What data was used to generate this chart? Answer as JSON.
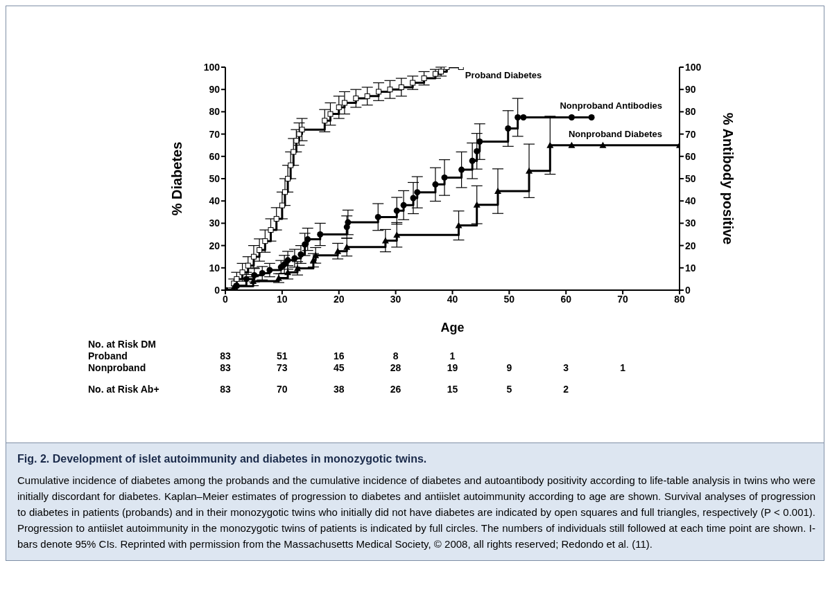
{
  "chart_data": {
    "type": "step",
    "title": "Fig. 2. Development of islet autoimmunity and diabetes in monozygotic twins.",
    "xlabel": "Age",
    "ylabel": "% Diabetes",
    "y2label": "% Antibody positive",
    "xlim": [
      0,
      80
    ],
    "xticks": [
      0,
      10,
      20,
      30,
      40,
      50,
      60,
      70,
      80
    ],
    "ylim": [
      0,
      100
    ],
    "yticks": [
      0,
      10,
      20,
      30,
      40,
      50,
      60,
      70,
      80,
      90,
      100
    ],
    "y2lim": [
      0,
      100
    ],
    "y2ticks": [
      0,
      10,
      20,
      30,
      40,
      50,
      60,
      70,
      80,
      90,
      100
    ],
    "grid": false,
    "legend": false,
    "line_style": "solid",
    "series": [
      {
        "name": "Proband Diabetes",
        "color": "#000000",
        "marker": "square",
        "x": [
          0,
          1.5,
          2,
          3,
          4,
          5,
          6,
          7,
          8,
          9,
          10,
          10.5,
          11,
          11.5,
          12,
          12.5,
          13,
          13.5,
          17.5,
          18.5,
          20,
          21,
          23,
          25,
          27,
          29,
          31,
          33,
          35,
          37,
          38,
          39,
          41.5
        ],
        "values": [
          0,
          3,
          5,
          8,
          11,
          15,
          18,
          22,
          27,
          32,
          38,
          44,
          50,
          56,
          62,
          67,
          70,
          72,
          76,
          79,
          82,
          84,
          86,
          87,
          89,
          90,
          91,
          93,
          95,
          97,
          98,
          100,
          100
        ],
        "errors": [
          null,
          2,
          3,
          4,
          4,
          5,
          5,
          5,
          5,
          5,
          6,
          6,
          6,
          6,
          6,
          5,
          5,
          5,
          5,
          5,
          5,
          5,
          4,
          4,
          4,
          4,
          4,
          3,
          3,
          2,
          2,
          null,
          null
        ]
      },
      {
        "name": "Nonproband Antibodies",
        "color": "#000000",
        "marker": "circle",
        "x": [
          0,
          2,
          3.7,
          5.1,
          6.5,
          7.8,
          9.8,
          10.4,
          11,
          12.2,
          13.3,
          14,
          14.5,
          16.7,
          21.4,
          21.6,
          26.9,
          30.2,
          31.4,
          33.1,
          33.8,
          37,
          38.6,
          41.6,
          43.5,
          44.3,
          44.8,
          49.8,
          51.5,
          52.5,
          61,
          64.5
        ],
        "values": [
          0,
          2,
          5,
          6.7,
          7.6,
          9,
          10.3,
          11.6,
          13.4,
          14.3,
          16,
          20.5,
          22.8,
          25,
          28.3,
          30.4,
          32.8,
          35.6,
          38.1,
          41.3,
          43.9,
          47.4,
          50.5,
          54,
          58,
          62.3,
          66.6,
          72.5,
          77.5,
          77.5,
          77.5,
          77.5
        ],
        "errors": [
          null,
          null,
          3,
          3,
          3,
          3,
          3,
          4,
          4,
          4,
          4,
          5,
          5,
          5,
          5,
          5.5,
          6,
          6,
          6.5,
          7,
          7,
          7.5,
          8,
          8,
          8,
          8,
          8,
          8,
          8.5,
          null,
          null,
          null
        ]
      },
      {
        "name": "Nonproband Diabetes",
        "color": "#000000",
        "marker": "triangle",
        "x": [
          0,
          1.6,
          4.9,
          9.4,
          11,
          12.7,
          15.5,
          15.9,
          19.8,
          21.4,
          28.2,
          30.2,
          41.1,
          44.3,
          48,
          53.5,
          57.2,
          61,
          66.5,
          80
        ],
        "values": [
          0,
          1.8,
          4,
          5.4,
          8,
          9.8,
          13.4,
          15.6,
          17.5,
          19.3,
          22.2,
          24.8,
          29,
          38.3,
          44.4,
          53.5,
          65,
          65,
          65,
          65
        ],
        "errors": [
          null,
          null,
          2,
          2,
          3,
          3,
          3,
          3.5,
          3.5,
          4,
          5,
          5.5,
          6.5,
          8.5,
          10,
          12,
          13,
          null,
          null,
          null
        ]
      }
    ],
    "annotations": [
      "No. at Risk DM",
      "Proband",
      "83",
      "51",
      "16",
      "8",
      "1",
      "Nonproband",
      "83",
      "73",
      "45",
      "28",
      "19",
      "9",
      "3",
      "1",
      "No. at Risk Ab+",
      "83",
      "70",
      "38",
      "26",
      "15",
      "5",
      "2",
      "Cumulative incidence of diabetes among the probands and the cumulative incidence of diabetes and autoantibody positivity according to life-table analysis in twins who were initially discordant for diabetes. Kaplan–Meier estimates of progression to diabetes and antiislet autoimmunity according to age are shown. Survival analyses of progression to diabetes in patients (probands) and in their monozygotic twins who initially did not have diabetes are indicated by open squares and full triangles, respectively (P < 0.001). Progression to antiislet autoimmunity in the monozygotic twins of patients is indicated by full circles. The numbers of individuals still followed at each time point are shown. I-bars denote 95% CIs. Reprinted with permission from the Massachusetts Medical Society, © 2008, all rights reserved; Redondo et al. (11)."
    ]
  }
}
